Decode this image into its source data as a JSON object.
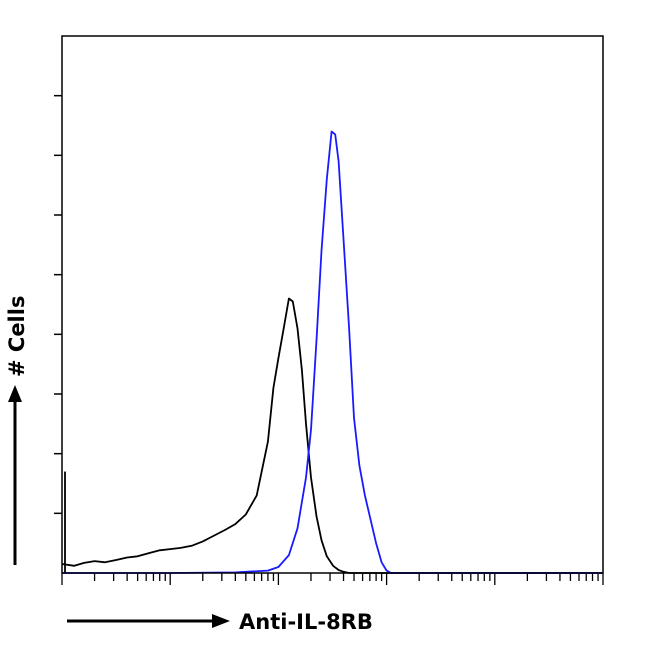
{
  "chart_data": {
    "type": "line",
    "chart_kind": "flow-cytometry-histogram",
    "xlabel": "Anti-IL-8RB",
    "ylabel": "# Cells",
    "x_scale": "log",
    "xlim": [
      1,
      100000
    ],
    "ylim": [
      0,
      9
    ],
    "tick_labels_shown": false,
    "grid": false,
    "legend": "none",
    "series": [
      {
        "color": "#000000",
        "points": [
          [
            1.0,
            0.15
          ],
          [
            1.3,
            0.12
          ],
          [
            1.6,
            0.17
          ],
          [
            2.0,
            0.2
          ],
          [
            2.5,
            0.18
          ],
          [
            3.2,
            0.22
          ],
          [
            4.0,
            0.26
          ],
          [
            5.0,
            0.28
          ],
          [
            6.3,
            0.33
          ],
          [
            8.0,
            0.38
          ],
          [
            10,
            0.4
          ],
          [
            12.5,
            0.42
          ],
          [
            16,
            0.46
          ],
          [
            20,
            0.53
          ],
          [
            25,
            0.62
          ],
          [
            32,
            0.72
          ],
          [
            40,
            0.82
          ],
          [
            50,
            0.98
          ],
          [
            63,
            1.3
          ],
          [
            80,
            2.2
          ],
          [
            90,
            3.1
          ],
          [
            100,
            3.6
          ],
          [
            112,
            4.1
          ],
          [
            125,
            4.6
          ],
          [
            136,
            4.55
          ],
          [
            150,
            4.1
          ],
          [
            165,
            3.4
          ],
          [
            180,
            2.5
          ],
          [
            200,
            1.6
          ],
          [
            225,
            0.95
          ],
          [
            250,
            0.55
          ],
          [
            280,
            0.28
          ],
          [
            320,
            0.12
          ],
          [
            360,
            0.05
          ],
          [
            400,
            0.02
          ],
          [
            450,
            0.0
          ],
          [
            600,
            0.0
          ],
          [
            100000,
            0.0
          ]
        ]
      },
      {
        "color": "#1a1aff",
        "points": [
          [
            1.0,
            0.0
          ],
          [
            10,
            0.0
          ],
          [
            40,
            0.01
          ],
          [
            80,
            0.04
          ],
          [
            100,
            0.1
          ],
          [
            125,
            0.3
          ],
          [
            150,
            0.75
          ],
          [
            180,
            1.6
          ],
          [
            200,
            2.4
          ],
          [
            225,
            3.9
          ],
          [
            250,
            5.4
          ],
          [
            280,
            6.6
          ],
          [
            310,
            7.4
          ],
          [
            335,
            7.35
          ],
          [
            360,
            6.9
          ],
          [
            400,
            5.6
          ],
          [
            450,
            4.1
          ],
          [
            500,
            2.6
          ],
          [
            560,
            1.8
          ],
          [
            630,
            1.3
          ],
          [
            710,
            0.9
          ],
          [
            800,
            0.5
          ],
          [
            900,
            0.18
          ],
          [
            1000,
            0.04
          ],
          [
            1100,
            0.0
          ],
          [
            100000,
            0.0
          ]
        ]
      }
    ]
  }
}
